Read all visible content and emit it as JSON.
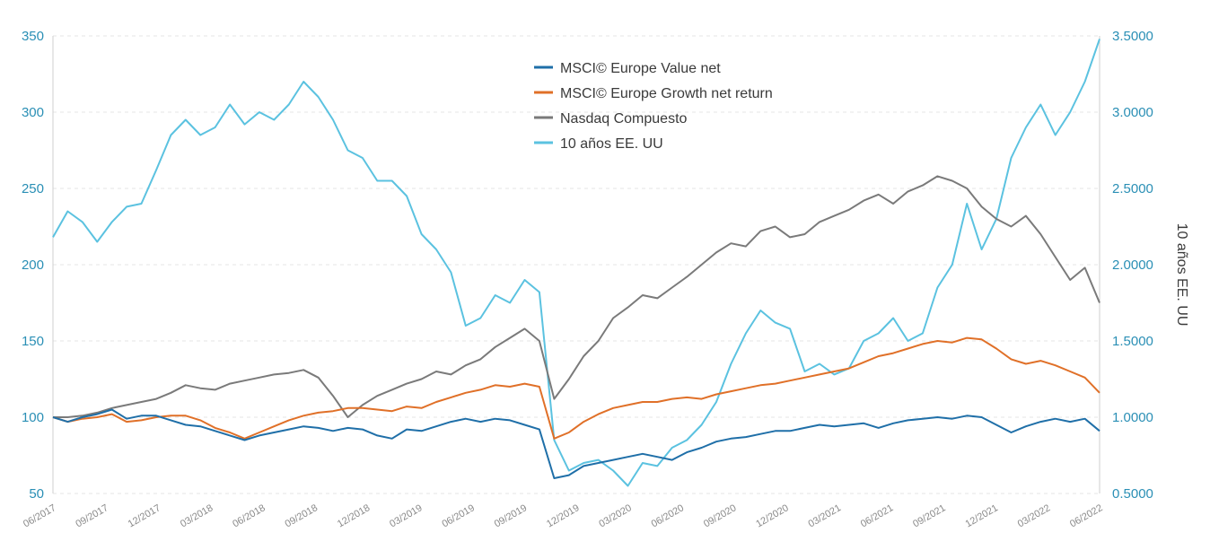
{
  "chart_data": {
    "type": "line",
    "x_tick_labels": [
      "06/2017",
      "09/2017",
      "12/2017",
      "03/2018",
      "06/2018",
      "09/2018",
      "12/2018",
      "03/2019",
      "06/2019",
      "09/2019",
      "12/2019",
      "03/2020",
      "06/2020",
      "09/2020",
      "12/2020",
      "03/2021",
      "06/2021",
      "09/2021",
      "12/2021",
      "03/2022",
      "06/2022"
    ],
    "y_left": {
      "ticks": [
        "50",
        "100",
        "150",
        "200",
        "250",
        "300",
        "350"
      ],
      "min": 50,
      "max": 350
    },
    "y_right": {
      "label": "10 años EE. UU",
      "ticks": [
        "0.5000",
        "1.0000",
        "1.5000",
        "2.0000",
        "2.5000",
        "3.0000",
        "3.5000"
      ],
      "min": 0.5,
      "max": 3.5
    },
    "legend_position": "top-center",
    "series": [
      {
        "name": "MSCI© Europe Value net",
        "color": "#1f6fa8",
        "axis": "left",
        "points": [
          [
            0,
            100
          ],
          [
            1,
            97
          ],
          [
            2,
            100
          ],
          [
            3,
            102
          ],
          [
            4,
            105
          ],
          [
            5,
            99
          ],
          [
            6,
            101
          ],
          [
            7,
            101
          ],
          [
            8,
            98
          ],
          [
            9,
            95
          ],
          [
            10,
            94
          ],
          [
            11,
            91
          ],
          [
            12,
            88
          ],
          [
            13,
            85
          ],
          [
            14,
            88
          ],
          [
            15,
            90
          ],
          [
            16,
            92
          ],
          [
            17,
            94
          ],
          [
            18,
            93
          ],
          [
            19,
            91
          ],
          [
            20,
            93
          ],
          [
            21,
            92
          ],
          [
            22,
            88
          ],
          [
            23,
            86
          ],
          [
            24,
            92
          ],
          [
            25,
            91
          ],
          [
            26,
            94
          ],
          [
            27,
            97
          ],
          [
            28,
            99
          ],
          [
            29,
            97
          ],
          [
            30,
            99
          ],
          [
            31,
            98
          ],
          [
            32,
            95
          ],
          [
            33,
            92
          ],
          [
            34,
            60
          ],
          [
            35,
            62
          ],
          [
            36,
            68
          ],
          [
            37,
            70
          ],
          [
            38,
            72
          ],
          [
            39,
            74
          ],
          [
            40,
            76
          ],
          [
            41,
            74
          ],
          [
            42,
            72
          ],
          [
            43,
            77
          ],
          [
            44,
            80
          ],
          [
            45,
            84
          ],
          [
            46,
            86
          ],
          [
            47,
            87
          ],
          [
            48,
            89
          ],
          [
            49,
            91
          ],
          [
            50,
            91
          ],
          [
            51,
            93
          ],
          [
            52,
            95
          ],
          [
            53,
            94
          ],
          [
            54,
            95
          ],
          [
            55,
            96
          ],
          [
            56,
            93
          ],
          [
            57,
            96
          ],
          [
            58,
            98
          ],
          [
            59,
            99
          ],
          [
            60,
            100
          ],
          [
            61,
            99
          ],
          [
            62,
            101
          ],
          [
            63,
            100
          ],
          [
            64,
            95
          ],
          [
            65,
            90
          ],
          [
            66,
            94
          ],
          [
            67,
            97
          ],
          [
            68,
            99
          ],
          [
            69,
            97
          ],
          [
            70,
            99
          ],
          [
            71,
            91
          ]
        ]
      },
      {
        "name": "MSCI© Europe Growth net return",
        "color": "#e07028",
        "axis": "left",
        "points": [
          [
            0,
            100
          ],
          [
            1,
            97
          ],
          [
            2,
            99
          ],
          [
            3,
            100
          ],
          [
            4,
            102
          ],
          [
            5,
            97
          ],
          [
            6,
            98
          ],
          [
            7,
            100
          ],
          [
            8,
            101
          ],
          [
            9,
            101
          ],
          [
            10,
            98
          ],
          [
            11,
            93
          ],
          [
            12,
            90
          ],
          [
            13,
            86
          ],
          [
            14,
            90
          ],
          [
            15,
            94
          ],
          [
            16,
            98
          ],
          [
            17,
            101
          ],
          [
            18,
            103
          ],
          [
            19,
            104
          ],
          [
            20,
            106
          ],
          [
            21,
            106
          ],
          [
            22,
            105
          ],
          [
            23,
            104
          ],
          [
            24,
            107
          ],
          [
            25,
            106
          ],
          [
            26,
            110
          ],
          [
            27,
            113
          ],
          [
            28,
            116
          ],
          [
            29,
            118
          ],
          [
            30,
            121
          ],
          [
            31,
            120
          ],
          [
            32,
            122
          ],
          [
            33,
            120
          ],
          [
            34,
            86
          ],
          [
            35,
            90
          ],
          [
            36,
            97
          ],
          [
            37,
            102
          ],
          [
            38,
            106
          ],
          [
            39,
            108
          ],
          [
            40,
            110
          ],
          [
            41,
            110
          ],
          [
            42,
            112
          ],
          [
            43,
            113
          ],
          [
            44,
            112
          ],
          [
            45,
            115
          ],
          [
            46,
            117
          ],
          [
            47,
            119
          ],
          [
            48,
            121
          ],
          [
            49,
            122
          ],
          [
            50,
            124
          ],
          [
            51,
            126
          ],
          [
            52,
            128
          ],
          [
            53,
            130
          ],
          [
            54,
            132
          ],
          [
            55,
            136
          ],
          [
            56,
            140
          ],
          [
            57,
            142
          ],
          [
            58,
            145
          ],
          [
            59,
            148
          ],
          [
            60,
            150
          ],
          [
            61,
            149
          ],
          [
            62,
            152
          ],
          [
            63,
            151
          ],
          [
            64,
            145
          ],
          [
            65,
            138
          ],
          [
            66,
            135
          ],
          [
            67,
            137
          ],
          [
            68,
            134
          ],
          [
            69,
            130
          ],
          [
            70,
            126
          ],
          [
            71,
            116
          ]
        ]
      },
      {
        "name": "Nasdaq Compuesto",
        "color": "#7a7a7a",
        "axis": "left",
        "points": [
          [
            0,
            100
          ],
          [
            1,
            100
          ],
          [
            2,
            101
          ],
          [
            3,
            103
          ],
          [
            4,
            106
          ],
          [
            5,
            108
          ],
          [
            6,
            110
          ],
          [
            7,
            112
          ],
          [
            8,
            116
          ],
          [
            9,
            121
          ],
          [
            10,
            119
          ],
          [
            11,
            118
          ],
          [
            12,
            122
          ],
          [
            13,
            124
          ],
          [
            14,
            126
          ],
          [
            15,
            128
          ],
          [
            16,
            129
          ],
          [
            17,
            131
          ],
          [
            18,
            126
          ],
          [
            19,
            114
          ],
          [
            20,
            100
          ],
          [
            21,
            108
          ],
          [
            22,
            114
          ],
          [
            23,
            118
          ],
          [
            24,
            122
          ],
          [
            25,
            125
          ],
          [
            26,
            130
          ],
          [
            27,
            128
          ],
          [
            28,
            134
          ],
          [
            29,
            138
          ],
          [
            30,
            146
          ],
          [
            31,
            152
          ],
          [
            32,
            158
          ],
          [
            33,
            150
          ],
          [
            34,
            112
          ],
          [
            35,
            125
          ],
          [
            36,
            140
          ],
          [
            37,
            150
          ],
          [
            38,
            165
          ],
          [
            39,
            172
          ],
          [
            40,
            180
          ],
          [
            41,
            178
          ],
          [
            42,
            185
          ],
          [
            43,
            192
          ],
          [
            44,
            200
          ],
          [
            45,
            208
          ],
          [
            46,
            214
          ],
          [
            47,
            212
          ],
          [
            48,
            222
          ],
          [
            49,
            225
          ],
          [
            50,
            218
          ],
          [
            51,
            220
          ],
          [
            52,
            228
          ],
          [
            53,
            232
          ],
          [
            54,
            236
          ],
          [
            55,
            242
          ],
          [
            56,
            246
          ],
          [
            57,
            240
          ],
          [
            58,
            248
          ],
          [
            59,
            252
          ],
          [
            60,
            258
          ],
          [
            61,
            255
          ],
          [
            62,
            250
          ],
          [
            63,
            238
          ],
          [
            64,
            230
          ],
          [
            65,
            225
          ],
          [
            66,
            232
          ],
          [
            67,
            220
          ],
          [
            68,
            205
          ],
          [
            69,
            190
          ],
          [
            70,
            198
          ],
          [
            71,
            175
          ]
        ]
      },
      {
        "name": "10 años EE. UU",
        "color": "#5bc2e0",
        "axis": "right",
        "points": [
          [
            0,
            2.18
          ],
          [
            1,
            2.35
          ],
          [
            2,
            2.28
          ],
          [
            3,
            2.15
          ],
          [
            4,
            2.28
          ],
          [
            5,
            2.38
          ],
          [
            6,
            2.4
          ],
          [
            7,
            2.62
          ],
          [
            8,
            2.85
          ],
          [
            9,
            2.95
          ],
          [
            10,
            2.85
          ],
          [
            11,
            2.9
          ],
          [
            12,
            3.05
          ],
          [
            13,
            2.92
          ],
          [
            14,
            3.0
          ],
          [
            15,
            2.95
          ],
          [
            16,
            3.05
          ],
          [
            17,
            3.2
          ],
          [
            18,
            3.1
          ],
          [
            19,
            2.95
          ],
          [
            20,
            2.75
          ],
          [
            21,
            2.7
          ],
          [
            22,
            2.55
          ],
          [
            23,
            2.55
          ],
          [
            24,
            2.45
          ],
          [
            25,
            2.2
          ],
          [
            26,
            2.1
          ],
          [
            27,
            1.95
          ],
          [
            28,
            1.6
          ],
          [
            29,
            1.65
          ],
          [
            30,
            1.8
          ],
          [
            31,
            1.75
          ],
          [
            32,
            1.9
          ],
          [
            33,
            1.82
          ],
          [
            34,
            0.85
          ],
          [
            35,
            0.65
          ],
          [
            36,
            0.7
          ],
          [
            37,
            0.72
          ],
          [
            38,
            0.65
          ],
          [
            39,
            0.55
          ],
          [
            40,
            0.7
          ],
          [
            41,
            0.68
          ],
          [
            42,
            0.8
          ],
          [
            43,
            0.85
          ],
          [
            44,
            0.95
          ],
          [
            45,
            1.1
          ],
          [
            46,
            1.35
          ],
          [
            47,
            1.55
          ],
          [
            48,
            1.7
          ],
          [
            49,
            1.62
          ],
          [
            50,
            1.58
          ],
          [
            51,
            1.3
          ],
          [
            52,
            1.35
          ],
          [
            53,
            1.28
          ],
          [
            54,
            1.32
          ],
          [
            55,
            1.5
          ],
          [
            56,
            1.55
          ],
          [
            57,
            1.65
          ],
          [
            58,
            1.5
          ],
          [
            59,
            1.55
          ],
          [
            60,
            1.85
          ],
          [
            61,
            2.0
          ],
          [
            62,
            2.4
          ],
          [
            63,
            2.1
          ],
          [
            64,
            2.3
          ],
          [
            65,
            2.7
          ],
          [
            66,
            2.9
          ],
          [
            67,
            3.05
          ],
          [
            68,
            2.85
          ],
          [
            69,
            3.0
          ],
          [
            70,
            3.2
          ],
          [
            71,
            3.48
          ]
        ]
      }
    ]
  }
}
